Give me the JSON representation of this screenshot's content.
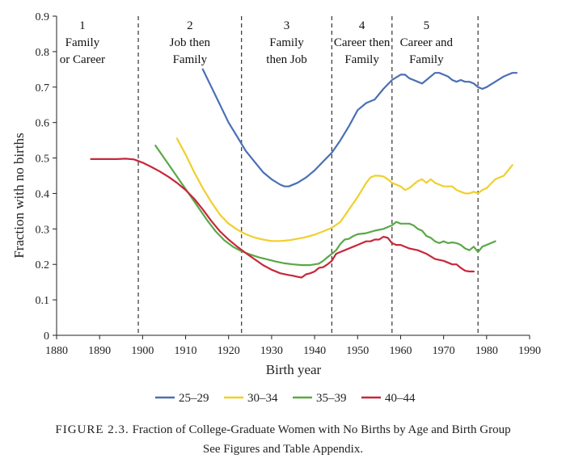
{
  "chart_data": {
    "type": "line",
    "title": "",
    "xlabel": "Birth year",
    "ylabel": "Fraction with no births",
    "xlim": [
      1880,
      1990
    ],
    "ylim": [
      0,
      0.9
    ],
    "xticks": [
      1880,
      1890,
      1900,
      1910,
      1920,
      1930,
      1940,
      1950,
      1960,
      1970,
      1980,
      1990
    ],
    "yticks": [
      0,
      0.1,
      0.2,
      0.3,
      0.4,
      0.5,
      0.6,
      0.7,
      0.8,
      0.9
    ],
    "ytick_labels": [
      "0",
      "0.1",
      "0.2",
      "0.3",
      "0.4",
      "0.5",
      "0.6",
      "0.7",
      "0.8",
      "0.9"
    ],
    "grid": false,
    "legend_position": "bottom",
    "dividers": [
      1899,
      1923,
      1944,
      1958,
      1978
    ],
    "groups": [
      {
        "number": "1",
        "lines": [
          "Family",
          "or Career"
        ],
        "x": 1886
      },
      {
        "number": "2",
        "lines": [
          "Job then",
          "Family"
        ],
        "x": 1911
      },
      {
        "number": "3",
        "lines": [
          "Family",
          "then Job"
        ],
        "x": 1933.5
      },
      {
        "number": "4",
        "lines": [
          "Career then",
          "Family"
        ],
        "x": 1951
      },
      {
        "number": "5",
        "lines": [
          "Career and",
          "Family"
        ],
        "x": 1966
      }
    ],
    "series": [
      {
        "name": "25–29",
        "color": "#4a6fb5",
        "x": [
          1914,
          1916,
          1918,
          1920,
          1922,
          1924,
          1926,
          1928,
          1930,
          1932,
          1933,
          1934,
          1936,
          1938,
          1940,
          1942,
          1944,
          1946,
          1948,
          1950,
          1952,
          1954,
          1956,
          1958,
          1960,
          1961,
          1962,
          1963,
          1964,
          1965,
          1966,
          1968,
          1969,
          1970,
          1971,
          1972,
          1973,
          1974,
          1975,
          1976,
          1977,
          1978,
          1979,
          1980,
          1982,
          1984,
          1985,
          1986,
          1987
        ],
        "y": [
          0.75,
          0.7,
          0.65,
          0.6,
          0.56,
          0.52,
          0.49,
          0.46,
          0.44,
          0.425,
          0.42,
          0.42,
          0.43,
          0.445,
          0.465,
          0.49,
          0.515,
          0.55,
          0.59,
          0.635,
          0.655,
          0.665,
          0.695,
          0.72,
          0.735,
          0.735,
          0.725,
          0.72,
          0.715,
          0.71,
          0.72,
          0.74,
          0.74,
          0.735,
          0.73,
          0.72,
          0.715,
          0.72,
          0.715,
          0.715,
          0.71,
          0.7,
          0.695,
          0.7,
          0.715,
          0.73,
          0.735,
          0.74,
          0.74
        ]
      },
      {
        "name": "30–34",
        "color": "#f0cf2e",
        "x": [
          1908,
          1910,
          1912,
          1914,
          1916,
          1918,
          1920,
          1922,
          1924,
          1926,
          1928,
          1930,
          1932,
          1934,
          1936,
          1938,
          1940,
          1942,
          1944,
          1946,
          1948,
          1950,
          1952,
          1953,
          1954,
          1955,
          1956,
          1957,
          1958,
          1959,
          1960,
          1961,
          1962,
          1963,
          1964,
          1965,
          1966,
          1967,
          1968,
          1969,
          1970,
          1971,
          1972,
          1973,
          1974,
          1975,
          1976,
          1977,
          1978,
          1979,
          1980,
          1982,
          1984,
          1986
        ],
        "y": [
          0.555,
          0.51,
          0.46,
          0.415,
          0.375,
          0.34,
          0.315,
          0.298,
          0.285,
          0.276,
          0.27,
          0.266,
          0.266,
          0.268,
          0.272,
          0.277,
          0.284,
          0.293,
          0.303,
          0.32,
          0.355,
          0.39,
          0.43,
          0.445,
          0.45,
          0.45,
          0.448,
          0.44,
          0.43,
          0.425,
          0.42,
          0.41,
          0.415,
          0.425,
          0.435,
          0.44,
          0.43,
          0.44,
          0.43,
          0.425,
          0.42,
          0.42,
          0.42,
          0.41,
          0.405,
          0.4,
          0.4,
          0.405,
          0.4,
          0.41,
          0.415,
          0.44,
          0.45,
          0.48
        ]
      },
      {
        "name": "35–39",
        "color": "#5aa847",
        "x": [
          1903,
          1905,
          1907,
          1909,
          1911,
          1913,
          1915,
          1917,
          1919,
          1921,
          1923,
          1925,
          1927,
          1929,
          1931,
          1933,
          1935,
          1937,
          1939,
          1941,
          1942,
          1943,
          1944,
          1945,
          1946,
          1947,
          1948,
          1949,
          1950,
          1952,
          1954,
          1956,
          1958,
          1959,
          1960,
          1962,
          1963,
          1964,
          1965,
          1966,
          1967,
          1968,
          1969,
          1970,
          1971,
          1972,
          1973,
          1974,
          1975,
          1976,
          1977,
          1978,
          1979,
          1980,
          1982
        ],
        "y": [
          0.535,
          0.5,
          0.465,
          0.43,
          0.395,
          0.36,
          0.325,
          0.293,
          0.268,
          0.25,
          0.237,
          0.228,
          0.22,
          0.214,
          0.208,
          0.203,
          0.2,
          0.198,
          0.198,
          0.202,
          0.21,
          0.22,
          0.23,
          0.24,
          0.258,
          0.27,
          0.272,
          0.28,
          0.285,
          0.288,
          0.295,
          0.3,
          0.31,
          0.32,
          0.315,
          0.315,
          0.31,
          0.3,
          0.295,
          0.28,
          0.275,
          0.265,
          0.26,
          0.265,
          0.26,
          0.262,
          0.26,
          0.255,
          0.245,
          0.24,
          0.25,
          0.235,
          0.25,
          0.255,
          0.265
        ]
      },
      {
        "name": "40–44",
        "color": "#c8273a",
        "x": [
          1888,
          1890,
          1892,
          1894,
          1896,
          1898,
          1900,
          1902,
          1904,
          1906,
          1908,
          1910,
          1912,
          1914,
          1916,
          1918,
          1920,
          1922,
          1924,
          1926,
          1928,
          1930,
          1932,
          1934,
          1935,
          1936,
          1937,
          1938,
          1939,
          1940,
          1941,
          1942,
          1943,
          1944,
          1945,
          1946,
          1947,
          1948,
          1949,
          1950,
          1951,
          1952,
          1953,
          1954,
          1955,
          1956,
          1957,
          1958,
          1959,
          1960,
          1962,
          1964,
          1966,
          1968,
          1970,
          1972,
          1973,
          1974,
          1975,
          1976,
          1977
        ],
        "y": [
          0.497,
          0.497,
          0.497,
          0.497,
          0.498,
          0.496,
          0.487,
          0.475,
          0.462,
          0.447,
          0.43,
          0.41,
          0.385,
          0.355,
          0.322,
          0.293,
          0.27,
          0.25,
          0.232,
          0.215,
          0.198,
          0.185,
          0.175,
          0.17,
          0.168,
          0.165,
          0.163,
          0.172,
          0.175,
          0.18,
          0.19,
          0.192,
          0.2,
          0.21,
          0.23,
          0.235,
          0.24,
          0.245,
          0.25,
          0.255,
          0.26,
          0.265,
          0.265,
          0.27,
          0.27,
          0.278,
          0.275,
          0.26,
          0.255,
          0.255,
          0.245,
          0.24,
          0.23,
          0.215,
          0.21,
          0.2,
          0.2,
          0.19,
          0.182,
          0.18,
          0.18
        ]
      }
    ]
  },
  "caption": {
    "label": "FIGURE 2.3.",
    "text": "Fraction of College-Graduate Women with No Births by Age and Birth Group",
    "source": "See Figures and Table Appendix."
  }
}
